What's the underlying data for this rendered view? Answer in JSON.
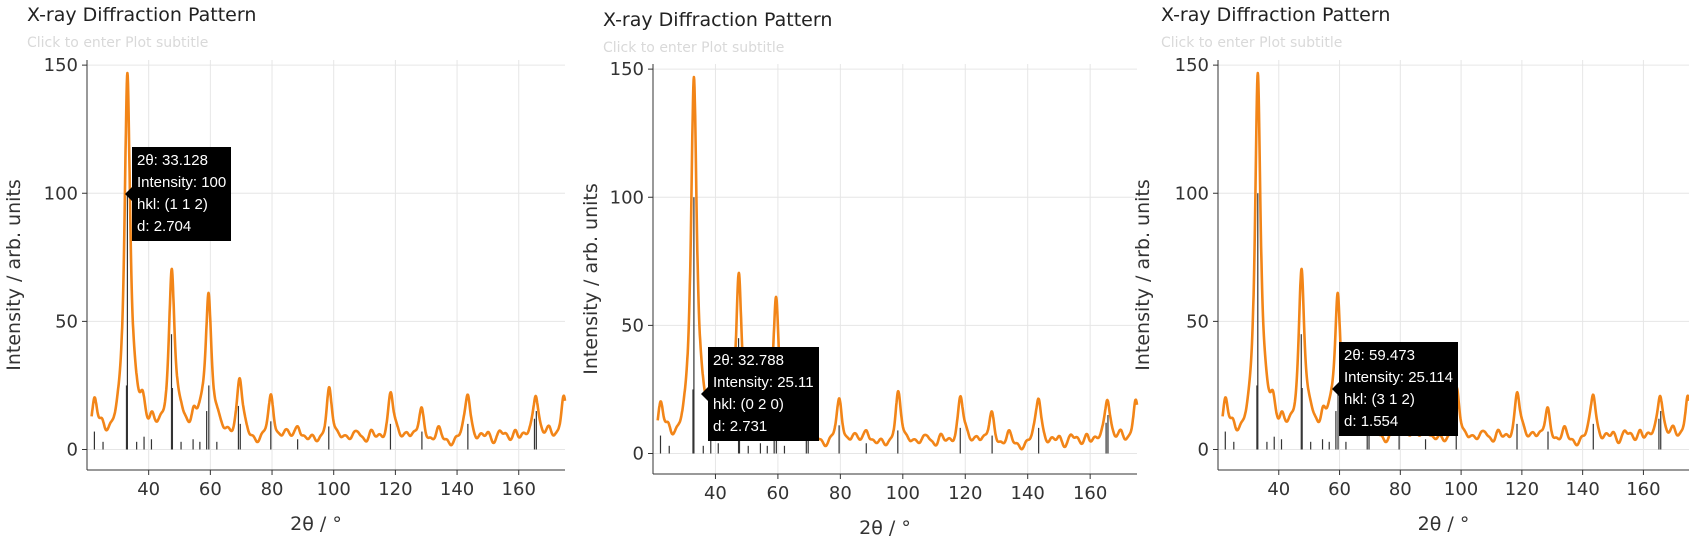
{
  "chart_data": [
    {
      "type": "line",
      "title": "X-ray Diffraction Pattern",
      "subtitle": "Click to enter Plot subtitle",
      "xlabel": "2θ / °",
      "ylabel": "Intensity / arb. units",
      "xlim": [
        20,
        175
      ],
      "ylim": [
        -8,
        152
      ],
      "xticks": [
        40,
        60,
        80,
        100,
        120,
        140,
        160
      ],
      "yticks": [
        0,
        50,
        100,
        150
      ],
      "grid": true,
      "series": [
        {
          "kind": "profile",
          "color": "#f28518",
          "peaks": [
            {
              "x": 22.5,
              "y": 14
            },
            {
              "x": 25,
              "y": 4
            },
            {
              "x": 33.1,
              "y": 143
            },
            {
              "x": 35.4,
              "y": 4
            },
            {
              "x": 38,
              "y": 10
            },
            {
              "x": 41,
              "y": 6
            },
            {
              "x": 47.5,
              "y": 67
            },
            {
              "x": 50.5,
              "y": 5
            },
            {
              "x": 54.5,
              "y": 8
            },
            {
              "x": 56.5,
              "y": 5
            },
            {
              "x": 59.4,
              "y": 56
            },
            {
              "x": 62,
              "y": 6
            },
            {
              "x": 69.5,
              "y": 25
            },
            {
              "x": 79.7,
              "y": 17
            },
            {
              "x": 84,
              "y": 3
            },
            {
              "x": 88.5,
              "y": 7
            },
            {
              "x": 98.5,
              "y": 20
            },
            {
              "x": 103,
              "y": 3
            },
            {
              "x": 108,
              "y": 4
            },
            {
              "x": 112,
              "y": 3
            },
            {
              "x": 118.5,
              "y": 20
            },
            {
              "x": 124,
              "y": 4
            },
            {
              "x": 128.5,
              "y": 12
            },
            {
              "x": 134,
              "y": 4
            },
            {
              "x": 143.5,
              "y": 20
            },
            {
              "x": 150,
              "y": 3
            },
            {
              "x": 154,
              "y": 4
            },
            {
              "x": 159,
              "y": 5
            },
            {
              "x": 165.5,
              "y": 20
            },
            {
              "x": 170,
              "y": 3
            },
            {
              "x": 174.5,
              "y": 18
            }
          ]
        },
        {
          "kind": "sticks",
          "color": "#333333",
          "x": [
            22.4,
            25.2,
            32.8,
            33.1,
            36.1,
            38.5,
            40.9,
            47.4,
            47.7,
            50.5,
            54.4,
            56.6,
            58.8,
            59.5,
            62.1,
            69.1,
            69.7,
            79.6,
            88.3,
            98.4,
            118.4,
            128.6,
            143.5,
            165.1,
            165.7
          ],
          "y": [
            7,
            3,
            25,
            100,
            3,
            5,
            4,
            45,
            24,
            3,
            4,
            3,
            15,
            25,
            3,
            17,
            10,
            11,
            4,
            9,
            10,
            7,
            10,
            12,
            15
          ]
        }
      ],
      "tooltip": {
        "theta": "33.128",
        "intensity": "100",
        "hkl": "(1 1 2)",
        "d": "2.704",
        "x": 33.128,
        "y": 100
      }
    },
    {
      "type": "line",
      "title": "X-ray Diffraction Pattern",
      "subtitle": "Click to enter Plot subtitle",
      "xlabel": "2θ / °",
      "ylabel": "Intensity / arb. units",
      "xlim": [
        20,
        175
      ],
      "ylim": [
        -8,
        152
      ],
      "xticks": [
        40,
        60,
        80,
        100,
        120,
        140,
        160
      ],
      "yticks": [
        0,
        50,
        100,
        150
      ],
      "grid": true,
      "tooltip": {
        "theta": "32.788",
        "intensity": "25.11",
        "hkl": "(0 2 0)",
        "d": "2.731",
        "x": 32.788,
        "y": 25.11
      }
    },
    {
      "type": "line",
      "title": "X-ray Diffraction Pattern",
      "subtitle": "Click to enter Plot subtitle",
      "xlabel": "2θ / °",
      "ylabel": "Intensity / arb. units",
      "xlim": [
        20,
        175
      ],
      "ylim": [
        -8,
        152
      ],
      "xticks": [
        40,
        60,
        80,
        100,
        120,
        140,
        160
      ],
      "yticks": [
        0,
        50,
        100,
        150
      ],
      "grid": true,
      "tooltip": {
        "theta": "59.473",
        "intensity": "25.114",
        "hkl": "(3 1 2)",
        "d": "1.554",
        "x": 59.473,
        "y": 25.114
      }
    }
  ]
}
